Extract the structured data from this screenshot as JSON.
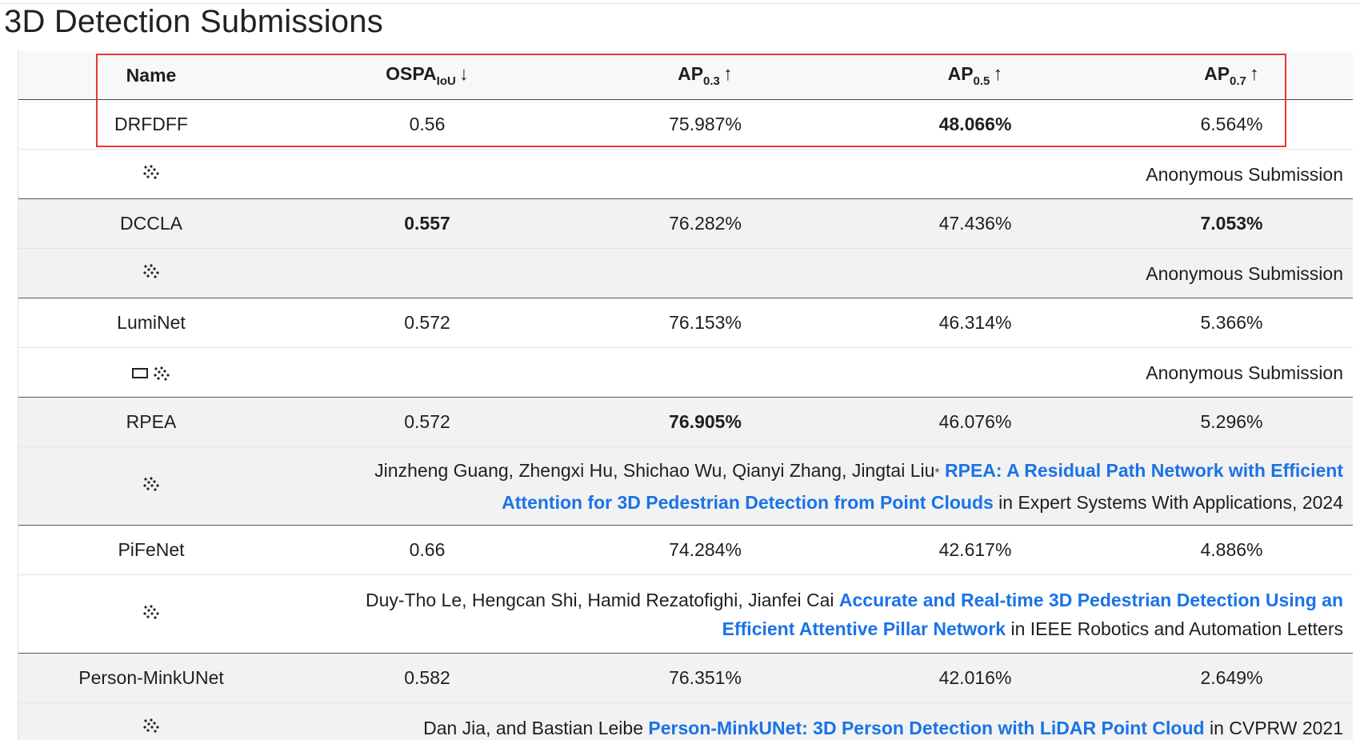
{
  "page": {
    "title": "3D Detection Submissions"
  },
  "table": {
    "headers": {
      "name": "Name",
      "ospa": "OSPA",
      "ospa_sub": "IoU",
      "ospa_arrow": "↓",
      "ap03": "AP",
      "ap03_sub": "0.3",
      "ap03_arrow": "↑",
      "ap05": "AP",
      "ap05_sub": "0.5",
      "ap05_arrow": "↑",
      "ap07": "AP",
      "ap07_sub": "0.7",
      "ap07_arrow": "↑"
    },
    "rows": [
      {
        "name": "DRFDFF",
        "ospa": "0.56",
        "ap03": "75.987%",
        "ap05": "48.066%",
        "ap07": "6.564%",
        "detail": {
          "text": "Anonymous Submission"
        }
      },
      {
        "name": "DCCLA",
        "ospa": "0.557",
        "ap03": "76.282%",
        "ap05": "47.436%",
        "ap07": "7.053%",
        "detail": {
          "text": "Anonymous Submission"
        }
      },
      {
        "name": "LumiNet",
        "ospa": "0.572",
        "ap03": "76.153%",
        "ap05": "46.314%",
        "ap07": "5.366%",
        "detail": {
          "text": "Anonymous Submission"
        }
      },
      {
        "name": "RPEA",
        "ospa": "0.572",
        "ap03": "76.905%",
        "ap05": "46.076%",
        "ap07": "5.296%",
        "detail": {
          "authors": "Jinzheng Guang, Zhengxi Hu, Shichao Wu, Qianyi Zhang, Jingtai Liu",
          "mark": "*",
          "paper_line1": "RPEA: A Residual Path Network with Efficient",
          "paper_line2": "Attention for 3D Pedestrian Detection from Point Clouds",
          "venue": " in Expert Systems With Applications, 2024"
        }
      },
      {
        "name": "PiFeNet",
        "ospa": "0.66",
        "ap03": "74.284%",
        "ap05": "42.617%",
        "ap07": "4.886%",
        "detail": {
          "authors": "Duy-Tho Le, Hengcan Shi, Hamid Rezatofighi, Jianfei Cai",
          "paper_line1": "Accurate and Real-time 3D Pedestrian Detection Using an",
          "paper_line2": "Efficient Attentive Pillar Network",
          "venue": " in IEEE Robotics and Automation Letters"
        }
      },
      {
        "name": "Person-MinkUNet",
        "ospa": "0.582",
        "ap03": "76.351%",
        "ap05": "42.016%",
        "ap07": "2.649%",
        "detail": {
          "authors": "Dan Jia, and Bastian Leibe",
          "paper": "Person-MinkUNet: 3D Person Detection with LiDAR Point Cloud",
          "venue": " in CVPRW 2021"
        }
      }
    ]
  },
  "icons": {
    "pointcloud": "point-cloud-icon",
    "image": "image-icon"
  },
  "colors": {
    "link": "#1a73e8",
    "highlight": "#e53935",
    "row_alt": "#f2f2f2"
  }
}
